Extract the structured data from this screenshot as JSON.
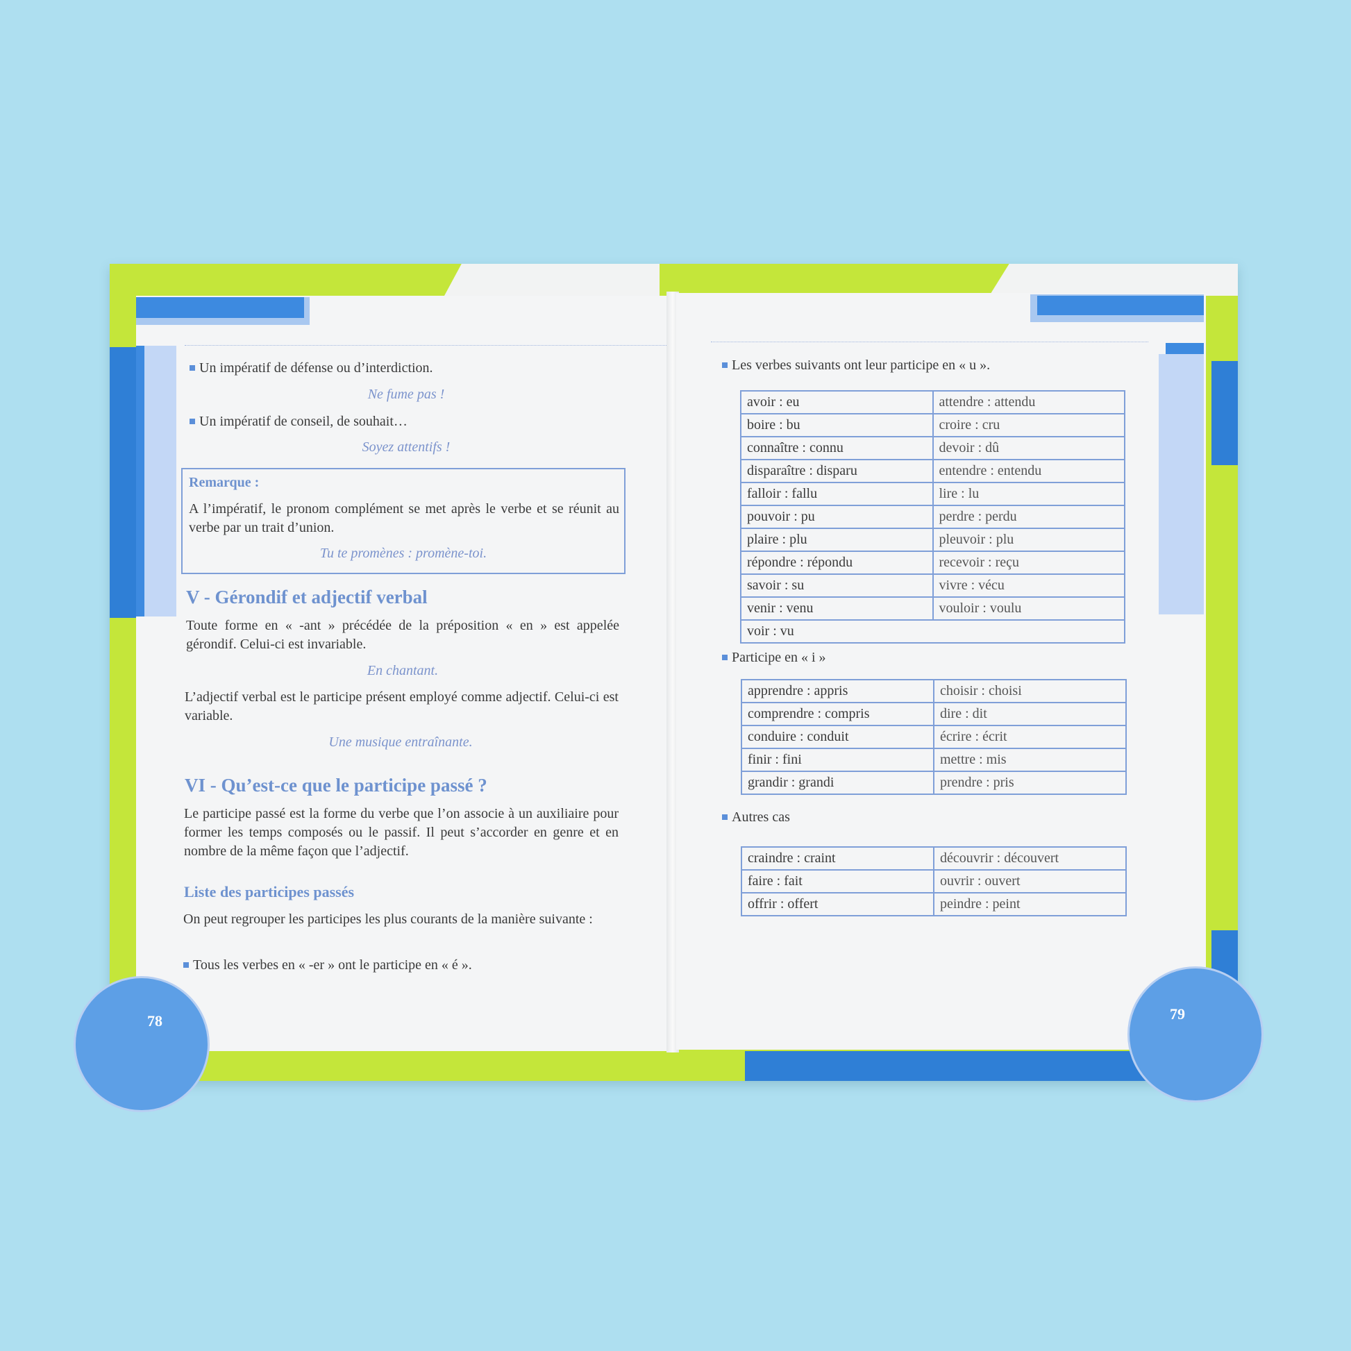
{
  "colors": {
    "background": "#aedff0",
    "cover_green": "#c4e63a",
    "cover_blue": "#2f7fd6",
    "accent_blue": "#6e92cf",
    "table_border": "#7f9fd8"
  },
  "left_page": {
    "page_number": "78",
    "bullet1": "Un impératif de défense ou d’interdiction.",
    "example1": "Ne fume pas !",
    "bullet2": "Un impératif de conseil, de souhait…",
    "example2": "Soyez attentifs !",
    "remark": {
      "title": "Remarque :",
      "text": "A l’impératif, le pronom complément se met après le verbe et se réunit au verbe par un trait d’union.",
      "example": "Tu te promènes : promène-toi."
    },
    "heading5": "V - Gérondif et adjectif verbal",
    "para1": "Toute forme en « -ant » précédée de la préposition « en » est appelée gérondif. Celui-ci est invariable.",
    "example3": "En chantant.",
    "para2": "L’adjectif verbal est le participe présent employé comme adjectif. Celui-ci est variable.",
    "example4": "Une musique entraînante.",
    "heading6": "VI - Qu’est-ce que le participe passé ?",
    "para3": "Le participe passé est la forme du verbe que l’on associe à un auxiliaire pour former les temps composés ou le passif. Il peut s’accorder en genre et en nombre de la même façon que l’adjectif.",
    "subheading": "Liste des participes passés",
    "para4": "On peut regrouper les participes les plus courants de la manière suivante :",
    "bullet3": "Tous les verbes en « -er » ont le participe en « é »."
  },
  "right_page": {
    "page_number": "79",
    "section_u": {
      "label": "Les verbes suivants ont leur participe en « u ».",
      "rows": [
        [
          "avoir : eu",
          "attendre : attendu"
        ],
        [
          "boire : bu",
          "croire : cru"
        ],
        [
          "connaître : connu",
          "devoir : dû"
        ],
        [
          "disparaître : disparu",
          "entendre : entendu"
        ],
        [
          "falloir : fallu",
          "lire : lu"
        ],
        [
          "pouvoir : pu",
          "perdre : perdu"
        ],
        [
          "plaire : plu",
          "pleuvoir : plu"
        ],
        [
          "répondre : répondu",
          "recevoir : reçu"
        ],
        [
          "savoir : su",
          "vivre : vécu"
        ],
        [
          "venir : venu",
          "vouloir : voulu"
        ],
        [
          "voir : vu",
          ""
        ]
      ]
    },
    "section_i": {
      "label": "Participe en « i »",
      "rows": [
        [
          "apprendre : appris",
          "choisir : choisi"
        ],
        [
          "comprendre : compris",
          "dire : dit"
        ],
        [
          "conduire : conduit",
          "écrire : écrit"
        ],
        [
          "finir : fini",
          "mettre : mis"
        ],
        [
          "grandir : grandi",
          "prendre : pris"
        ]
      ]
    },
    "section_other": {
      "label": "Autres cas",
      "rows": [
        [
          "craindre : craint",
          "découvrir : découvert"
        ],
        [
          "faire : fait",
          "ouvrir : ouvert"
        ],
        [
          "offrir : offert",
          "peindre : peint"
        ]
      ]
    }
  }
}
